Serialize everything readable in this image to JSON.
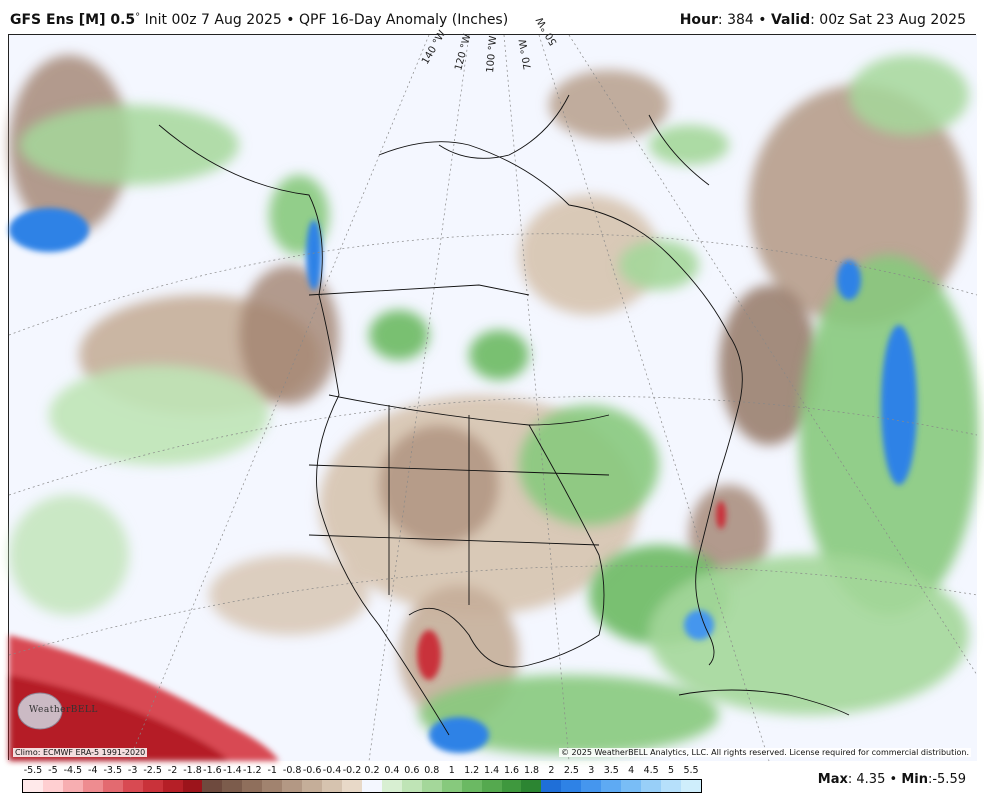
{
  "header": {
    "model": "GFS Ens [M] 0.5",
    "degree_sign": "°",
    "init": "Init 00z 7 Aug 2025",
    "bullet": "•",
    "product": "QPF 16-Day Anomaly (Inches)",
    "hour_label": "Hour",
    "hour_value": ": 384",
    "valid_label": "Valid",
    "valid_value": ": 00z Sat 23 Aug 2025"
  },
  "map": {
    "longitude_labels": [
      "140 °W",
      "120 °W",
      "100 °W",
      "70 °W",
      "50 °W"
    ],
    "logo_text": "WeatherBELL",
    "climo": "Climo: ECMWF ERA-5 1991-2020",
    "copyright": "© 2025 WeatherBELL Analytics, LLC. All rights reserved. License required for commercial distribution."
  },
  "colorbar": {
    "labels": [
      "-5.5",
      "-5",
      "-4.5",
      "-4",
      "-3.5",
      "-3",
      "-2.5",
      "-2",
      "-1.8",
      "-1.6",
      "-1.4",
      "-1.2",
      "-1",
      "-0.8",
      "-0.6",
      "-0.4",
      "-0.2",
      "0.2",
      "0.4",
      "0.6",
      "0.8",
      "1",
      "1.2",
      "1.4",
      "1.6",
      "1.8",
      "2",
      "2.5",
      "3",
      "3.5",
      "4",
      "4.5",
      "5",
      "5.5"
    ],
    "colors": [
      "#ffe9ea",
      "#ffcfd1",
      "#f7aeb1",
      "#ee8c90",
      "#e36a70",
      "#d84a52",
      "#c9323a",
      "#b51f27",
      "#9c141b",
      "#6e4a3e",
      "#7c5c4c",
      "#8f6f5c",
      "#a1836f",
      "#b39884",
      "#c5ae99",
      "#d6c3af",
      "#e8d9c8",
      "#f4f7ff",
      "#d8efd2",
      "#bfe4b6",
      "#a4d79a",
      "#87c97d",
      "#6bb963",
      "#55a94f",
      "#3f983e",
      "#2c8532",
      "#1f6fd8",
      "#2e82e6",
      "#4596ee",
      "#5eaaf3",
      "#79bdf6",
      "#98cff8",
      "#b6e0fb",
      "#cfeefc"
    ]
  },
  "stats": {
    "max_label": "Max",
    "max_value": ": 4.35",
    "bullet": "•",
    "min_label": "Min",
    "min_value": ":-5.59"
  }
}
